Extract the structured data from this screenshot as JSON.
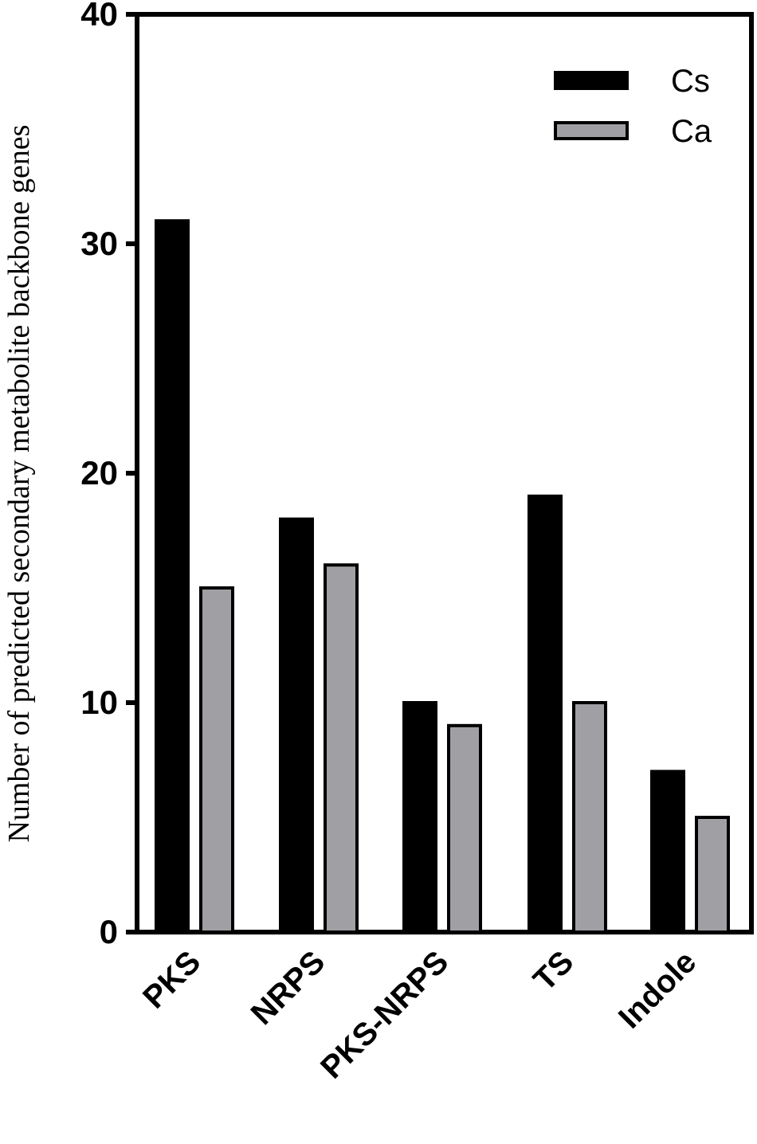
{
  "chart_data": {
    "type": "bar",
    "categories": [
      "PKS",
      "NRPS",
      "PKS-NRPS",
      "TS",
      "Indole"
    ],
    "series": [
      {
        "name": "Cs",
        "values": [
          31,
          18,
          10,
          19,
          7
        ],
        "color": "#000000"
      },
      {
        "name": "Ca",
        "values": [
          15,
          16,
          9,
          10,
          5
        ],
        "color": "#a0a0a4"
      }
    ],
    "title": "",
    "xlabel": "",
    "ylabel": "Number of predicted secondary metabolite backbone genes",
    "ylim": [
      0,
      40
    ],
    "yticks": [
      "0",
      "10",
      "20",
      "30",
      "40"
    ],
    "grid": false,
    "legend_position": "top-right"
  }
}
